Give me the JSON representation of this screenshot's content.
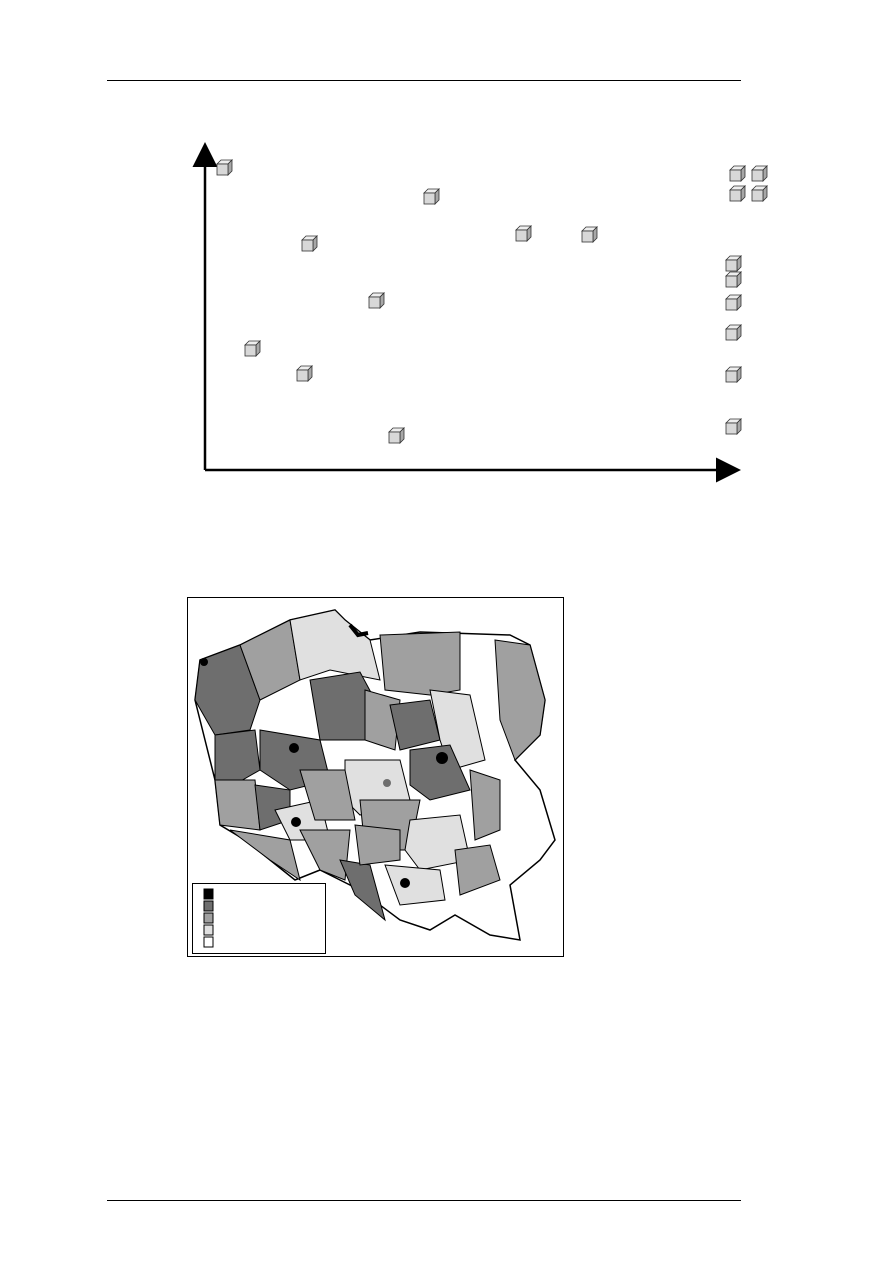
{
  "legend": {
    "swatches": [
      {
        "color": "#000000"
      },
      {
        "color": "#6e6e6e"
      },
      {
        "color": "#a0a0a0"
      },
      {
        "color": "#e0e0e0"
      },
      {
        "color": "#ffffff"
      }
    ]
  },
  "colors": {
    "cube_face": "#d8d8d8",
    "cube_side": "#a8a8a8",
    "cube_top": "#eeeeee"
  }
}
